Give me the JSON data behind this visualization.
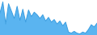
{
  "values": [
    60,
    90,
    30,
    85,
    65,
    45,
    78,
    40,
    70,
    35,
    68,
    50,
    62,
    55,
    45,
    55,
    38,
    48,
    35,
    42,
    30,
    38,
    25,
    35,
    8,
    5,
    10,
    5,
    3,
    8,
    5,
    15,
    28,
    22,
    32
  ],
  "line_color": "#3a9de0",
  "fill_color": "#5ab4f0",
  "background_color": "#ffffff",
  "ylim_min": 0
}
